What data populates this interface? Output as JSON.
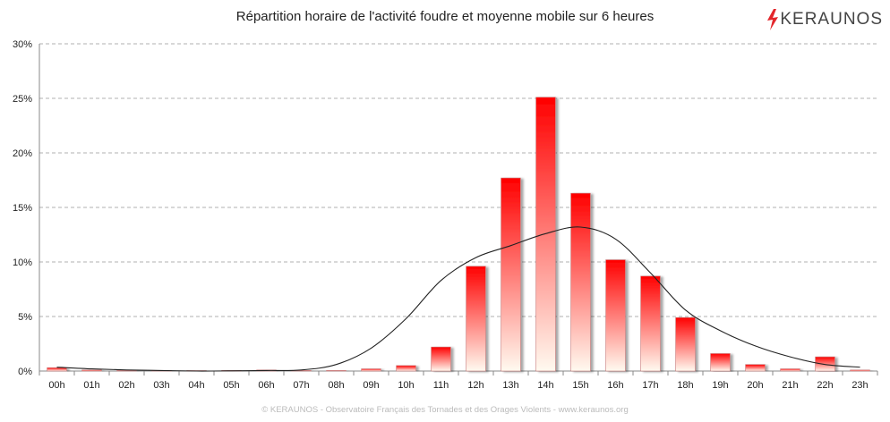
{
  "title": "Répartition horaire de l'activité foudre et moyenne mobile sur 6 heures",
  "logo": {
    "text": "KERAUNOS",
    "icon": "lightning-bolt-icon",
    "color": "#e3262b"
  },
  "footer": "© KERAUNOS - Observatoire Français des Tornades et des Orages Violents - www.keraunos.org",
  "chart_data": {
    "type": "bar",
    "categories": [
      "00h",
      "01h",
      "02h",
      "03h",
      "04h",
      "05h",
      "06h",
      "07h",
      "08h",
      "09h",
      "10h",
      "11h",
      "12h",
      "13h",
      "14h",
      "15h",
      "16h",
      "17h",
      "18h",
      "19h",
      "20h",
      "21h",
      "22h",
      "23h"
    ],
    "series": [
      {
        "type": "bar",
        "values": [
          0.3,
          0.1,
          0.05,
          0.05,
          0.0,
          0.05,
          0.1,
          0.05,
          0.05,
          0.2,
          0.5,
          2.2,
          9.6,
          17.7,
          25.1,
          16.3,
          10.2,
          8.7,
          4.9,
          1.6,
          0.6,
          0.2,
          1.3,
          0.1
        ]
      },
      {
        "type": "line",
        "values": [
          0.35,
          0.2,
          0.1,
          0.05,
          0.0,
          0.02,
          0.05,
          0.1,
          0.6,
          2.1,
          4.8,
          8.3,
          10.4,
          11.5,
          12.6,
          13.2,
          12.1,
          9.0,
          5.6,
          3.7,
          2.3,
          1.3,
          0.6,
          0.35
        ]
      }
    ],
    "yticks": [
      "0%",
      "5%",
      "10%",
      "15%",
      "20%",
      "25%",
      "30%"
    ],
    "ylim": [
      0,
      30
    ],
    "grid": true,
    "bar_gradient": [
      "#ff0000",
      "#fffaf0"
    ],
    "line_color": "#222222"
  }
}
